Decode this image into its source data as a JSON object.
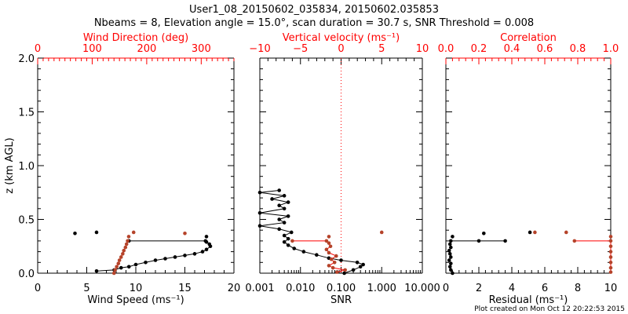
{
  "title": "User1_08_20150602_035834, 20150602.035853",
  "subtitle": "Nbeams = 8, Elevation angle = 15.0°, scan duration = 30.7 s, SNR Threshold = 0.008",
  "footer": "Plot created on Mon Oct 12 20:22:53 2015",
  "colors": {
    "primary": "#000000",
    "secondary": "#ff0000",
    "secondary_points": "#b5432a"
  },
  "chart_data": [
    {
      "type": "scatter",
      "ylabel": "z (km AGL)",
      "ylim": [
        0,
        2
      ],
      "yticks": [
        "0.0",
        "0.5",
        "1.0",
        "1.5",
        "2.0"
      ],
      "xlabel": "Wind Speed (ms⁻¹)",
      "xlim": [
        0,
        20
      ],
      "xticks": [
        "0",
        "5",
        "10",
        "15",
        "20"
      ],
      "top_label": "Wind Direction (deg)",
      "top_lim": [
        0,
        360
      ],
      "top_ticks": [
        "0",
        "100",
        "200",
        "300"
      ],
      "series": [
        {
          "name": "Wind Speed",
          "axis": "bottom",
          "line": [
            [
              6,
              0.02
            ],
            [
              7.8,
              0.03
            ],
            [
              8.5,
              0.05
            ],
            [
              9.3,
              0.06
            ],
            [
              10,
              0.08
            ],
            [
              11,
              0.1
            ],
            [
              12,
              0.12
            ],
            [
              13,
              0.135
            ],
            [
              14,
              0.15
            ],
            [
              15,
              0.165
            ],
            [
              16,
              0.18
            ],
            [
              16.8,
              0.2
            ],
            [
              17.2,
              0.22
            ],
            [
              17.6,
              0.25
            ],
            [
              17.5,
              0.27
            ],
            [
              17.2,
              0.29
            ],
            [
              17.1,
              0.3
            ],
            [
              9.3,
              0.3
            ]
          ],
          "points": [
            [
              3.8,
              0.37
            ],
            [
              6,
              0.38
            ],
            [
              17.2,
              0.34
            ]
          ]
        },
        {
          "name": "Wind Direction",
          "axis": "top",
          "line": [
            [
              140,
              0.0
            ],
            [
              142,
              0.03
            ],
            [
              145,
              0.06
            ],
            [
              148,
              0.09
            ],
            [
              150,
              0.12
            ],
            [
              153,
              0.15
            ],
            [
              156,
              0.18
            ],
            [
              158,
              0.21
            ],
            [
              161,
              0.24
            ],
            [
              163,
              0.27
            ],
            [
              165,
              0.3
            ]
          ],
          "points": [
            [
              176,
              0.38
            ],
            [
              270,
              0.37
            ],
            [
              167,
              0.34
            ]
          ]
        }
      ]
    },
    {
      "type": "scatter",
      "ylim": [
        0,
        2
      ],
      "xlabel": "SNR",
      "xscale": "log",
      "xlim": [
        0.001,
        10
      ],
      "xticks": [
        "0.001",
        "0.010",
        "0.100",
        "1.000",
        "10.000"
      ],
      "top_label": "Vertical velocity (ms⁻¹)",
      "top_lim": [
        -10,
        10
      ],
      "top_ticks": [
        "−10",
        "−5",
        "0",
        "5",
        "10"
      ],
      "series": [
        {
          "name": "SNR",
          "axis": "bottom",
          "line": [
            [
              0.12,
              0.0
            ],
            [
              0.2,
              0.03
            ],
            [
              0.3,
              0.06
            ],
            [
              0.35,
              0.08
            ],
            [
              0.25,
              0.1
            ],
            [
              0.1,
              0.12
            ],
            [
              0.05,
              0.14
            ],
            [
              0.025,
              0.17
            ],
            [
              0.012,
              0.2
            ],
            [
              0.007,
              0.23
            ],
            [
              0.005,
              0.26
            ],
            [
              0.004,
              0.29
            ],
            [
              0.005,
              0.32
            ],
            [
              0.004,
              0.35
            ],
            [
              0.006,
              0.38
            ],
            [
              0.003,
              0.41
            ],
            [
              0.001,
              0.44
            ],
            [
              0.004,
              0.47
            ],
            [
              0.003,
              0.5
            ],
            [
              0.005,
              0.53
            ],
            [
              0.001,
              0.56
            ],
            [
              0.004,
              0.6
            ],
            [
              0.003,
              0.63
            ],
            [
              0.005,
              0.66
            ],
            [
              0.002,
              0.69
            ],
            [
              0.004,
              0.72
            ],
            [
              0.001,
              0.75
            ],
            [
              0.003,
              0.77
            ]
          ],
          "points": []
        },
        {
          "name": "Vertical velocity",
          "axis": "top",
          "line": [
            [
              -0.5,
              0.01
            ],
            [
              0.5,
              0.03
            ],
            [
              -1,
              0.05
            ],
            [
              -1.5,
              0.07
            ],
            [
              -0.8,
              0.1
            ],
            [
              -1.2,
              0.13
            ],
            [
              -0.6,
              0.16
            ],
            [
              -1.5,
              0.19
            ],
            [
              -1.8,
              0.22
            ],
            [
              -1.3,
              0.25
            ],
            [
              -1.5,
              0.28
            ],
            [
              -1.8,
              0.3
            ],
            [
              -6,
              0.3
            ]
          ],
          "points": [
            [
              5,
              0.38
            ],
            [
              -1.5,
              0.34
            ]
          ]
        }
      ]
    },
    {
      "type": "scatter",
      "ylim": [
        0,
        2
      ],
      "xlabel": "Residual (ms⁻¹)",
      "xlim": [
        0,
        10
      ],
      "xticks": [
        "0",
        "2",
        "4",
        "6",
        "8",
        "10"
      ],
      "top_label": "Correlation",
      "top_lim": [
        0,
        1
      ],
      "top_ticks": [
        "0.0",
        "0.2",
        "0.4",
        "0.6",
        "0.8",
        "1.0"
      ],
      "series": [
        {
          "name": "Residual",
          "axis": "bottom",
          "line": [
            [
              0.4,
              0.0
            ],
            [
              0.3,
              0.03
            ],
            [
              0.25,
              0.06
            ],
            [
              0.3,
              0.09
            ],
            [
              0.2,
              0.12
            ],
            [
              0.3,
              0.15
            ],
            [
              0.25,
              0.18
            ],
            [
              0.2,
              0.21
            ],
            [
              0.3,
              0.24
            ],
            [
              0.25,
              0.27
            ],
            [
              0.3,
              0.3
            ],
            [
              2,
              0.3
            ],
            [
              3.6,
              0.3
            ]
          ],
          "points": [
            [
              0.4,
              0.34
            ],
            [
              2.3,
              0.37
            ],
            [
              5.1,
              0.38
            ]
          ]
        },
        {
          "name": "Correlation",
          "axis": "top",
          "line": [
            [
              1,
              0.01
            ],
            [
              1,
              0.05
            ],
            [
              1,
              0.1
            ],
            [
              1,
              0.15
            ],
            [
              1,
              0.2
            ],
            [
              1,
              0.25
            ],
            [
              1,
              0.3
            ],
            [
              0.78,
              0.3
            ]
          ],
          "points": [
            [
              0.54,
              0.38
            ],
            [
              0.73,
              0.38
            ],
            [
              1,
              0.34
            ]
          ]
        }
      ]
    }
  ]
}
